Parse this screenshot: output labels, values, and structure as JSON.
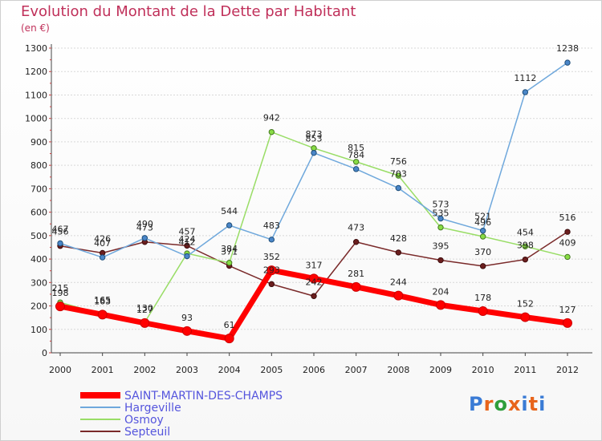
{
  "header": {
    "title": "Evolution du Montant de la Dette par Habitant",
    "subtitle": "(en €)"
  },
  "logo": {
    "text": "Proxiti"
  },
  "colors": {
    "title": "#c0305a",
    "legend_text": "#5555dd",
    "grid": "#d8d8d8"
  },
  "chart_data": {
    "type": "line",
    "title": "Evolution du Montant de la Dette par Habitant",
    "ylabel": "(en €)",
    "xlabel": "",
    "x": [
      "2000",
      "2001",
      "2002",
      "2003",
      "2004",
      "2005",
      "2006",
      "2007",
      "2008",
      "2009",
      "2010",
      "2011",
      "2012"
    ],
    "ylim": [
      0,
      1300
    ],
    "yticks": [
      0,
      100,
      200,
      300,
      400,
      500,
      600,
      700,
      800,
      900,
      1000,
      1100,
      1200,
      1300
    ],
    "grid": true,
    "legend_position": "bottom-left",
    "series": [
      {
        "name": "SAINT-MARTIN-DES-CHAMPS",
        "color": "#ff0000",
        "marker_fill": "#ff0000",
        "marker_stroke": "#cc0000",
        "width": 7,
        "values": [
          198,
          163,
          127,
          93,
          61,
          352,
          317,
          281,
          244,
          204,
          178,
          152,
          127
        ],
        "labels": [
          "198",
          "163",
          "127",
          "93",
          "61",
          "352",
          "317",
          "281",
          "244",
          "204",
          "178",
          "152",
          "127"
        ],
        "label_dy": [
          -13,
          -13,
          -13,
          -13,
          -13,
          -13,
          -13,
          -13,
          -13,
          -13,
          -13,
          -13,
          -13
        ]
      },
      {
        "name": "Hargeville",
        "color": "#6fa8dc",
        "marker_fill": "#4a86c8",
        "marker_stroke": "#1f4e79",
        "width": 1.5,
        "values": [
          467,
          407,
          490,
          412,
          544,
          483,
          853,
          784,
          703,
          573,
          521,
          1112,
          1238
        ],
        "labels": [
          "467",
          "407",
          "490",
          "412",
          "544",
          "483",
          "853",
          "784",
          "703",
          "573",
          "521",
          "1112",
          "1238"
        ],
        "label_dy": [
          -14,
          -14,
          -14,
          -14,
          -14,
          -14,
          -14,
          -14,
          -14,
          -14,
          -14,
          -14,
          -14
        ]
      },
      {
        "name": "Osmoy",
        "color": "#99dd66",
        "marker_fill": "#88dd44",
        "marker_stroke": "#447722",
        "width": 1.5,
        "values": [
          215,
          165,
          130,
          424,
          384,
          942,
          873,
          815,
          756,
          535,
          496,
          454,
          409
        ],
        "labels": [
          "215",
          "165",
          "130",
          "424",
          "384",
          "942",
          "873",
          "815",
          "756",
          "535",
          "496",
          "454",
          "409"
        ],
        "label_dy": [
          -14,
          -14,
          -14,
          -14,
          -14,
          -14,
          -14,
          -14,
          -14,
          -14,
          -14,
          -14,
          -14
        ]
      },
      {
        "name": "Septeuil",
        "color": "#7a2a2a",
        "marker_fill": "#6b1e1e",
        "marker_stroke": "#3d0c0c",
        "width": 1.5,
        "values": [
          456,
          426,
          473,
          457,
          371,
          293,
          242,
          473,
          428,
          395,
          370,
          398,
          516
        ],
        "labels": [
          "456",
          "426",
          "473",
          "457",
          "371",
          "293",
          "242",
          "473",
          "428",
          "395",
          "370",
          "398",
          "516"
        ],
        "label_dy": [
          -14,
          -14,
          -14,
          -14,
          -14,
          -14,
          -14,
          -14,
          -14,
          -14,
          -14,
          -14,
          -14
        ]
      }
    ]
  }
}
